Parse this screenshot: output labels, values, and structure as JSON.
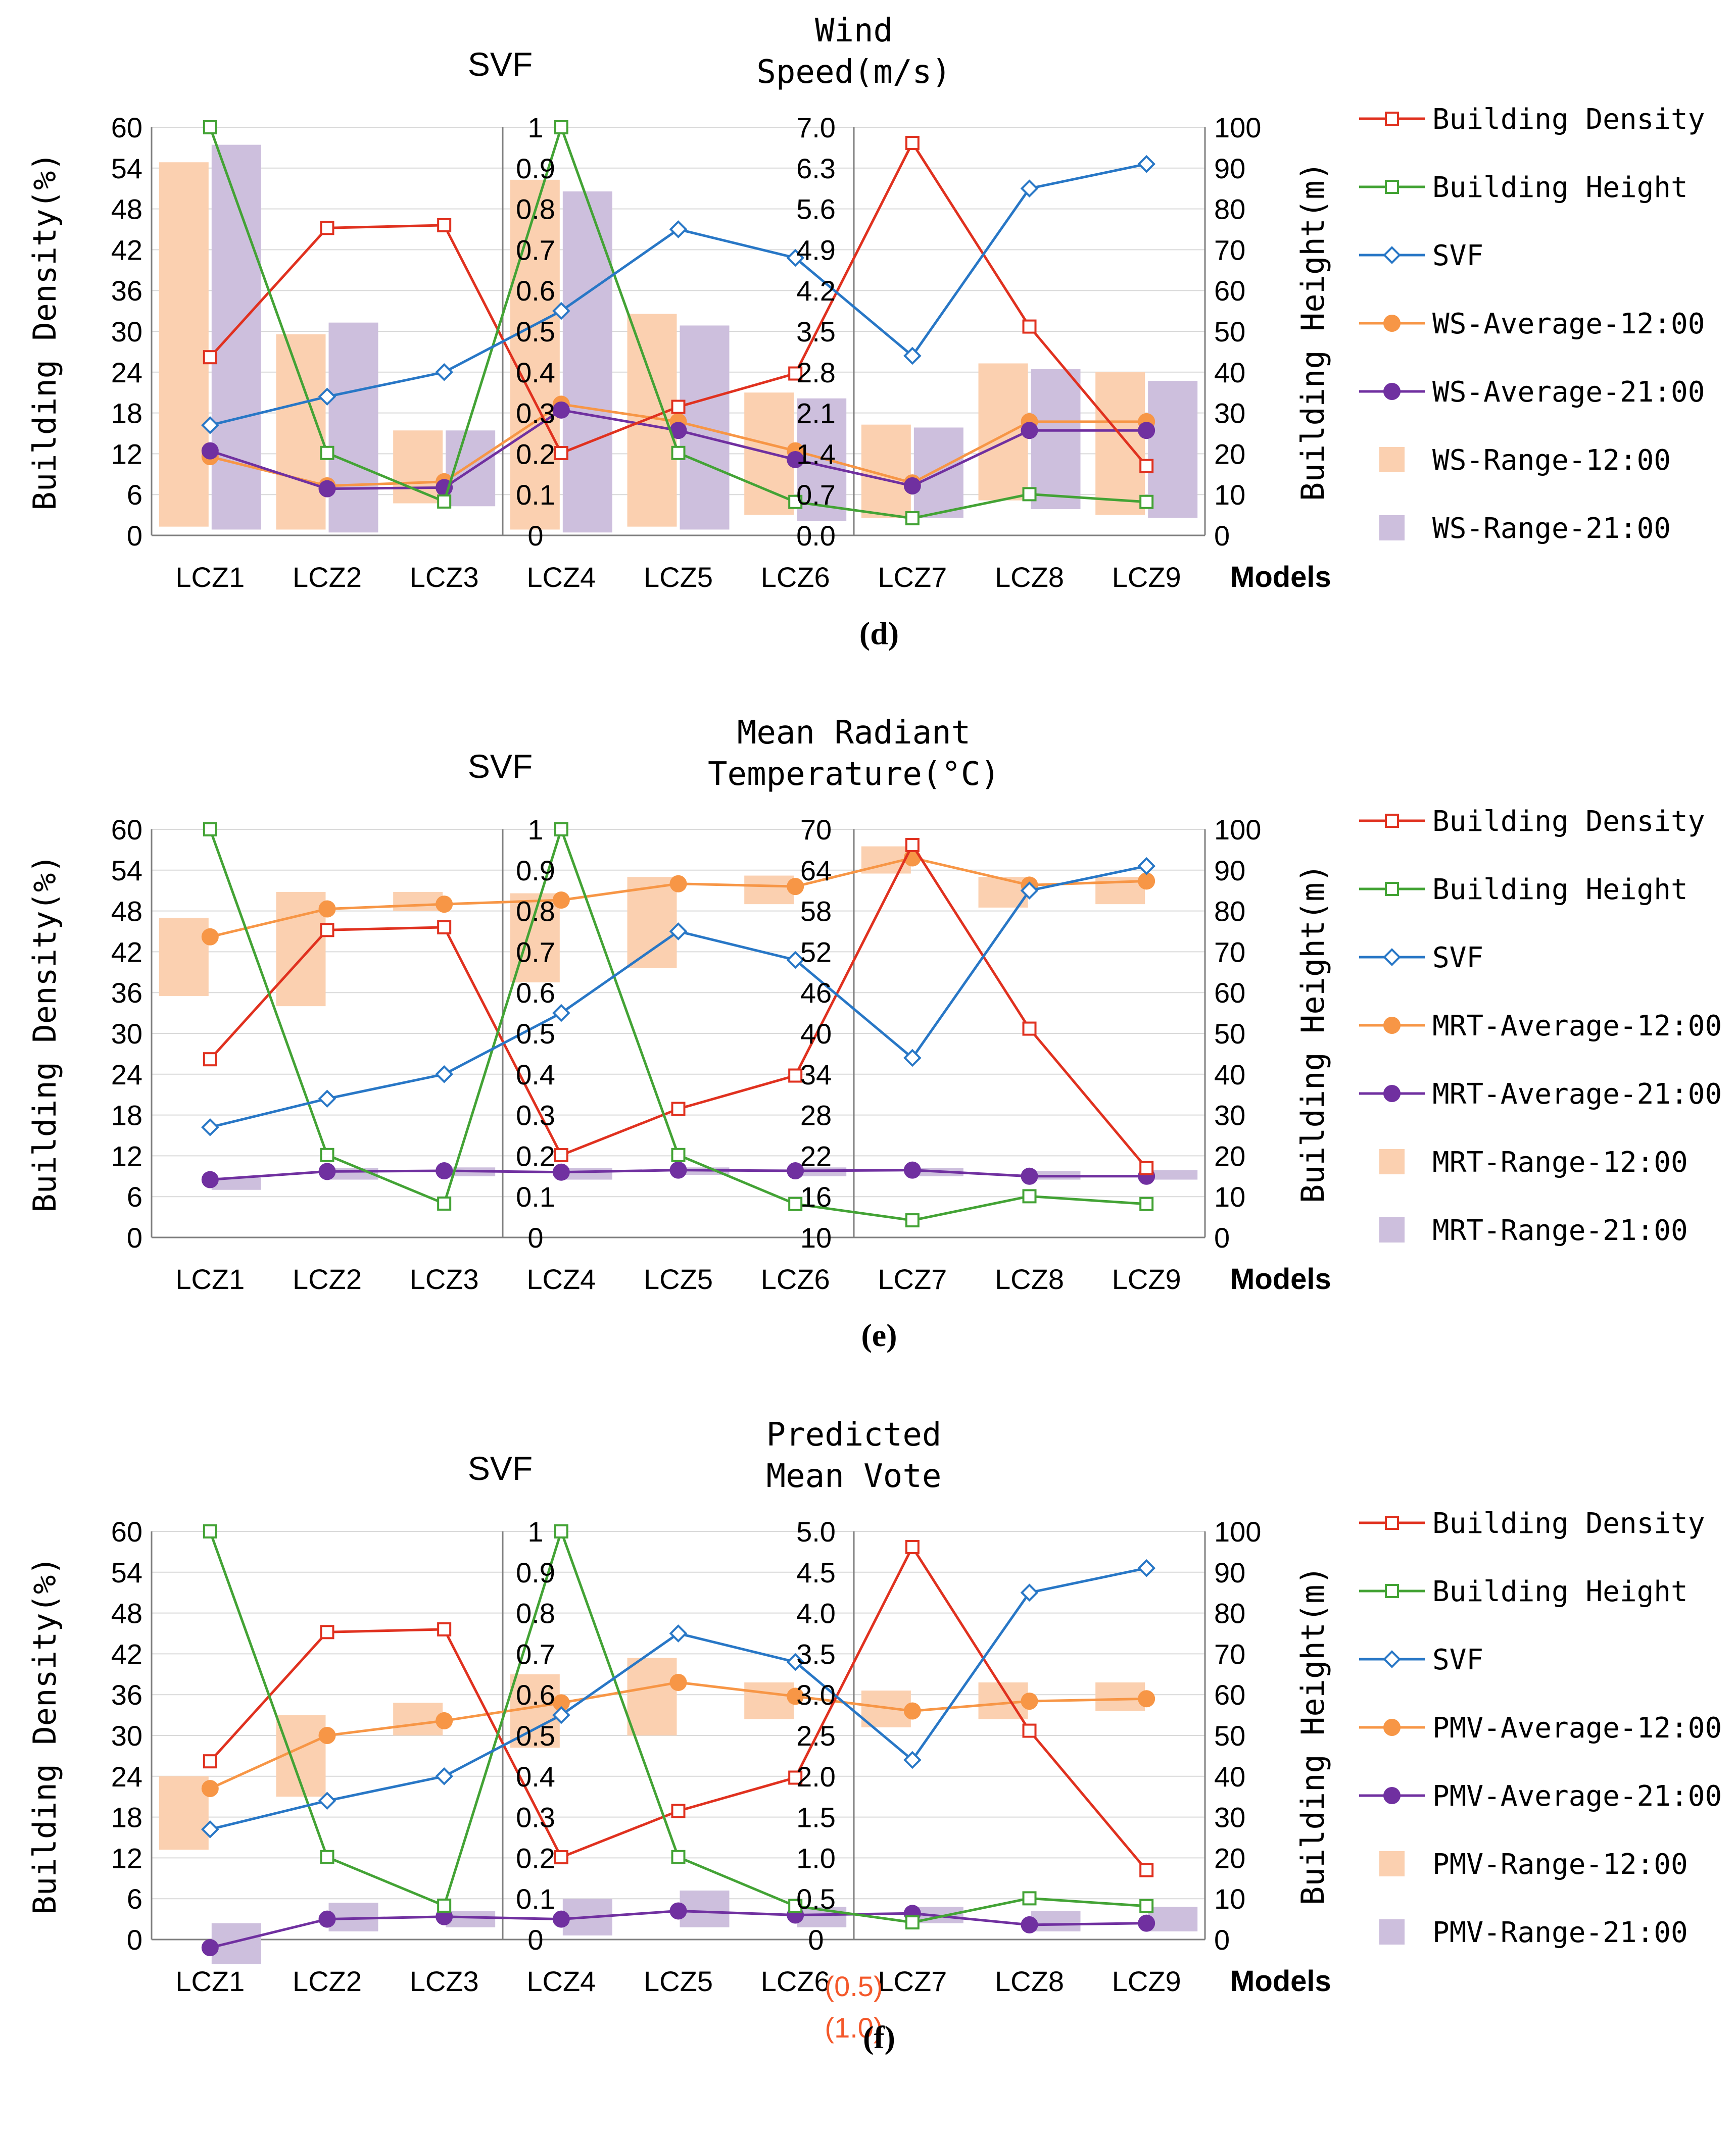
{
  "colors": {
    "building_density": "#e0311f",
    "building_height": "#43a335",
    "svf": "#2877c6",
    "avg_12": "#f79646",
    "avg_21": "#7030a0",
    "range_12": "#fbd0b0",
    "range_21": "#cdbfdd",
    "annotation": "#f4582a",
    "axis": "#7f7f7f",
    "grid": "#d9d9d9"
  },
  "shared": {
    "categories": [
      "LCZ1",
      "LCZ2",
      "LCZ3",
      "LCZ4",
      "LCZ5",
      "LCZ6",
      "LCZ7",
      "LCZ8",
      "LCZ9"
    ],
    "models_label": "Models",
    "left_axis_title": "Building Density(%)",
    "right_axis_title": "Building Height(m)",
    "svf_title": "SVF",
    "bd_ticks": [
      "0",
      "6",
      "12",
      "18",
      "24",
      "30",
      "36",
      "42",
      "48",
      "54",
      "60"
    ],
    "svf_ticks": [
      "0",
      "0.1",
      "0.2",
      "0.3",
      "0.4",
      "0.5",
      "0.6",
      "0.7",
      "0.8",
      "0.9",
      "1"
    ],
    "bh_ticks": [
      "0",
      "10",
      "20",
      "30",
      "40",
      "50",
      "60",
      "70",
      "80",
      "90",
      "100"
    ],
    "building_density": [
      26.2,
      45.2,
      45.6,
      12.1,
      18.9,
      23.8,
      57.7,
      30.7,
      10.2
    ],
    "building_height": [
      100,
      20.2,
      8.3,
      100,
      20.2,
      8.2,
      4.2,
      10.1,
      8.2
    ],
    "svf": [
      0.27,
      0.34,
      0.4,
      0.55,
      0.75,
      0.68,
      0.44,
      0.85,
      0.91
    ],
    "legend_common": [
      "Building Density",
      "Building Height",
      "SVF"
    ]
  },
  "chart_data": [
    {
      "type": "line",
      "panel_label": "(d)",
      "metric_title": [
        "Wind",
        "Speed(m/s)"
      ],
      "metric_ticks": [
        "0.0",
        "0.7",
        "1.4",
        "2.1",
        "2.8",
        "3.5",
        "4.2",
        "4.9",
        "5.6",
        "6.3",
        "7.0"
      ],
      "metric_range": [
        0,
        7
      ],
      "legend_metric": [
        "WS-Average-12:00",
        "WS-Average-21:00",
        "WS-Range-12:00",
        "WS-Range-21:00"
      ],
      "avg_12": [
        1.35,
        0.85,
        0.92,
        2.25,
        1.95,
        1.45,
        0.9,
        1.95,
        1.95
      ],
      "avg_21": [
        1.45,
        0.8,
        0.82,
        2.15,
        1.8,
        1.3,
        0.85,
        1.8,
        1.8
      ],
      "range_12": [
        [
          0.15,
          6.4
        ],
        [
          0.1,
          3.45
        ],
        [
          0.55,
          1.8
        ],
        [
          0.1,
          6.1
        ],
        [
          0.15,
          3.8
        ],
        [
          0.35,
          2.45
        ],
        [
          0.3,
          1.9
        ],
        [
          0.6,
          2.95
        ],
        [
          0.35,
          2.8
        ]
      ],
      "range_21": [
        [
          0.1,
          6.7
        ],
        [
          0.05,
          3.65
        ],
        [
          0.5,
          1.8
        ],
        [
          0.05,
          5.9
        ],
        [
          0.1,
          3.6
        ],
        [
          0.25,
          2.35
        ],
        [
          0.3,
          1.85
        ],
        [
          0.45,
          2.85
        ],
        [
          0.3,
          2.65
        ]
      ],
      "annotations": []
    },
    {
      "type": "line",
      "panel_label": "(e)",
      "metric_title": [
        "Mean Radiant",
        "Temperature(°C)"
      ],
      "metric_ticks": [
        "10",
        "16",
        "22",
        "28",
        "34",
        "40",
        "46",
        "52",
        "58",
        "64",
        "70"
      ],
      "metric_range": [
        10,
        70
      ],
      "legend_metric": [
        "MRT-Average-12:00",
        "MRT-Average-21:00",
        "MRT-Range-12:00",
        "MRT-Range-21:00"
      ],
      "avg_12": [
        54.2,
        58.3,
        59.0,
        59.6,
        62.0,
        61.6,
        65.8,
        61.8,
        62.4
      ],
      "avg_21": [
        18.5,
        19.7,
        19.8,
        19.6,
        19.9,
        19.8,
        19.9,
        19.0,
        19.0
      ],
      "range_12": [
        [
          45.5,
          57.0
        ],
        [
          44.0,
          60.8
        ],
        [
          58.0,
          60.8
        ],
        [
          47.5,
          60.6
        ],
        [
          49.6,
          63.0
        ],
        [
          59.0,
          63.2
        ],
        [
          63.5,
          67.5
        ],
        [
          58.5,
          63.0
        ],
        [
          59.0,
          63.0
        ]
      ],
      "range_21": [
        [
          17.0,
          18.8
        ],
        [
          18.5,
          20.2
        ],
        [
          19.0,
          20.3
        ],
        [
          18.5,
          20.2
        ],
        [
          19.2,
          20.3
        ],
        [
          19.0,
          20.3
        ],
        [
          19.0,
          20.2
        ],
        [
          18.5,
          19.8
        ],
        [
          18.5,
          19.9
        ]
      ],
      "annotations": []
    },
    {
      "type": "line",
      "panel_label": "(f)",
      "metric_title": [
        "Predicted",
        "Mean Vote"
      ],
      "metric_ticks": [
        "0",
        "0.5",
        "1.0",
        "1.5",
        "2.0",
        "2.5",
        "3.0",
        "3.5",
        "4.0",
        "4.5",
        "5.0"
      ],
      "metric_range": [
        0,
        5
      ],
      "legend_metric": [
        "PMV-Average-12:00",
        "PMV-Average-21:00",
        "PMV-Range-12:00",
        "PMV-Range-21:00"
      ],
      "avg_12": [
        1.85,
        2.5,
        2.68,
        2.9,
        3.15,
        2.98,
        2.8,
        2.92,
        2.95
      ],
      "avg_21": [
        -0.1,
        0.25,
        0.28,
        0.25,
        0.35,
        0.3,
        0.32,
        0.18,
        0.2
      ],
      "range_12": [
        [
          1.1,
          2.0
        ],
        [
          1.75,
          2.75
        ],
        [
          2.5,
          2.9
        ],
        [
          2.35,
          3.25
        ],
        [
          2.5,
          3.45
        ],
        [
          2.7,
          3.15
        ],
        [
          2.6,
          3.05
        ],
        [
          2.7,
          3.15
        ],
        [
          2.8,
          3.15
        ]
      ],
      "range_21": [
        [
          -0.3,
          0.2
        ],
        [
          0.1,
          0.45
        ],
        [
          0.15,
          0.35
        ],
        [
          0.05,
          0.5
        ],
        [
          0.15,
          0.6
        ],
        [
          0.15,
          0.4
        ],
        [
          0.2,
          0.4
        ],
        [
          0.1,
          0.35
        ],
        [
          0.1,
          0.4
        ]
      ],
      "annotations": [
        "(0.5)",
        "(1.0)"
      ]
    }
  ]
}
